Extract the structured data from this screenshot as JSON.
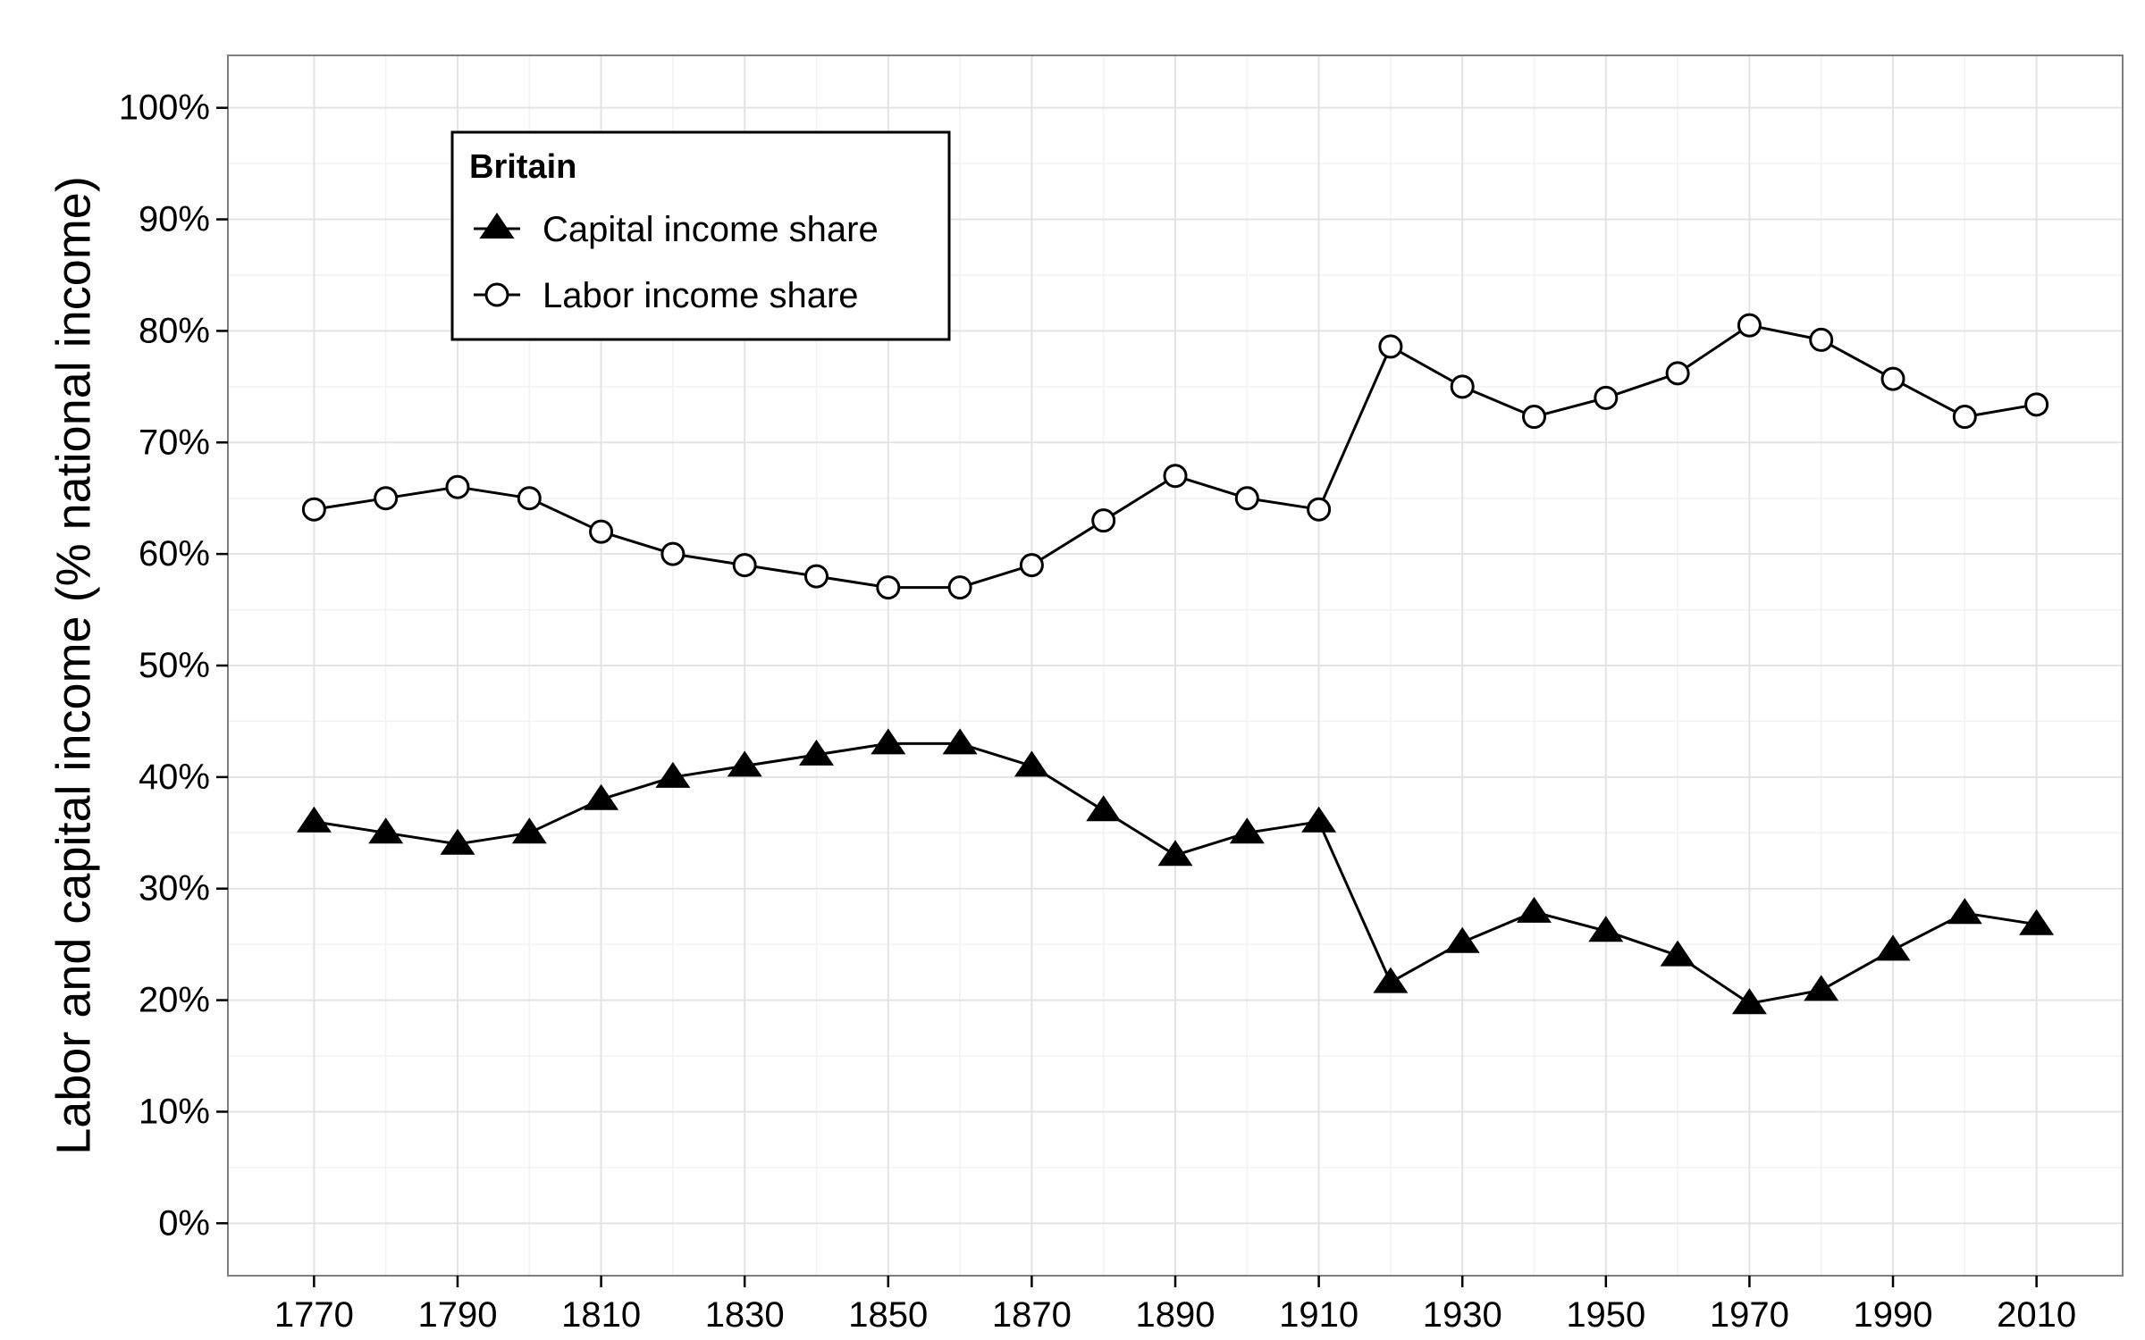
{
  "chart_data": {
    "type": "line",
    "title": "",
    "xlabel": "",
    "ylabel": "Labor and capital income (% national income)",
    "x": [
      1770,
      1780,
      1790,
      1800,
      1810,
      1820,
      1830,
      1840,
      1850,
      1860,
      1870,
      1880,
      1890,
      1900,
      1910,
      1920,
      1930,
      1940,
      1950,
      1960,
      1970,
      1980,
      1990,
      2000,
      2010
    ],
    "xlim": [
      1758,
      2022
    ],
    "x_ticks": [
      1770,
      1790,
      1810,
      1830,
      1850,
      1870,
      1890,
      1910,
      1930,
      1950,
      1970,
      1990,
      2010
    ],
    "x_tick_labels": [
      "1770",
      "1790",
      "1810",
      "1830",
      "1850",
      "1870",
      "1890",
      "1910",
      "1930",
      "1950",
      "1970",
      "1990",
      "2010"
    ],
    "ylim": [
      -4.7,
      104.7
    ],
    "y_ticks": [
      0,
      10,
      20,
      30,
      40,
      50,
      60,
      70,
      80,
      90,
      100
    ],
    "y_tick_labels": [
      "0%",
      "10%",
      "20%",
      "30%",
      "40%",
      "50%",
      "60%",
      "70%",
      "80%",
      "90%",
      "100%"
    ],
    "grid": true,
    "legend": {
      "title": "Britain",
      "position": "top-left"
    },
    "series": [
      {
        "name": "Capital income share",
        "marker": "filled-triangle",
        "color": "#000000",
        "values": [
          36,
          35,
          34,
          35,
          38,
          40,
          41,
          42,
          43,
          43,
          41,
          37,
          33,
          35,
          36,
          21.6,
          25.2,
          27.9,
          26.2,
          24,
          19.7,
          20.9,
          24.5,
          27.8,
          26.8
        ]
      },
      {
        "name": "Labor income share",
        "marker": "open-circle",
        "color": "#000000",
        "values": [
          64,
          65,
          66,
          65,
          62,
          60,
          59,
          58,
          57,
          57,
          59,
          63,
          67,
          65,
          64,
          78.6,
          75,
          72.3,
          74,
          76.2,
          80.5,
          79.2,
          75.7,
          72.3,
          73.4
        ]
      }
    ]
  }
}
